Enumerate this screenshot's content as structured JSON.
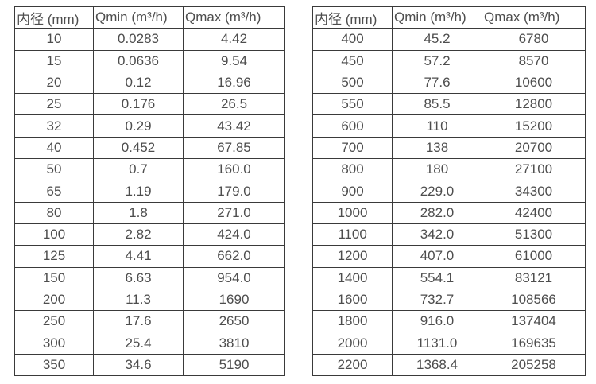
{
  "colors": {
    "background": "#ffffff",
    "border": "#3a3a3a",
    "text": "#4d4d4d"
  },
  "tables": [
    {
      "name": "flow-rate-table-small-diameters",
      "headers": [
        "内径 (mm)",
        "Qmin (m³/h)",
        "Qmax (m³/h)"
      ],
      "rows": [
        [
          "10",
          "0.0283",
          "4.42"
        ],
        [
          "15",
          "0.0636",
          "9.54"
        ],
        [
          "20",
          "0.12",
          "16.96"
        ],
        [
          "25",
          "0.176",
          "26.5"
        ],
        [
          "32",
          "0.29",
          "43.42"
        ],
        [
          "40",
          "0.452",
          "67.85"
        ],
        [
          "50",
          "0.7",
          "160.0"
        ],
        [
          "65",
          "1.19",
          "179.0"
        ],
        [
          "80",
          "1.8",
          "271.0"
        ],
        [
          "100",
          "2.82",
          "424.0"
        ],
        [
          "125",
          "4.41",
          "662.0"
        ],
        [
          "150",
          "6.63",
          "954.0"
        ],
        [
          "200",
          "11.3",
          "1690"
        ],
        [
          "250",
          "17.6",
          "2650"
        ],
        [
          "300",
          "25.4",
          "3810"
        ],
        [
          "350",
          "34.6",
          "5190"
        ]
      ]
    },
    {
      "name": "flow-rate-table-large-diameters",
      "headers": [
        "内径 (mm)",
        "Qmin (m³/h)",
        "Qmax (m³/h)"
      ],
      "rows": [
        [
          "400",
          "45.2",
          "6780"
        ],
        [
          "450",
          "57.2",
          "8570"
        ],
        [
          "500",
          "77.6",
          "10600"
        ],
        [
          "550",
          "85.5",
          "12800"
        ],
        [
          "600",
          "110",
          "15200"
        ],
        [
          "700",
          "138",
          "20700"
        ],
        [
          "800",
          "180",
          "27100"
        ],
        [
          "900",
          "229.0",
          "34300"
        ],
        [
          "1000",
          "282.0",
          "42400"
        ],
        [
          "1100",
          "342.0",
          "51300"
        ],
        [
          "1200",
          "407.0",
          "61000"
        ],
        [
          "1400",
          "554.1",
          "83121"
        ],
        [
          "1600",
          "732.7",
          "108566"
        ],
        [
          "1800",
          "916.0",
          "137404"
        ],
        [
          "2000",
          "1131.0",
          "169635"
        ],
        [
          "2200",
          "1368.4",
          "205258"
        ]
      ]
    }
  ]
}
